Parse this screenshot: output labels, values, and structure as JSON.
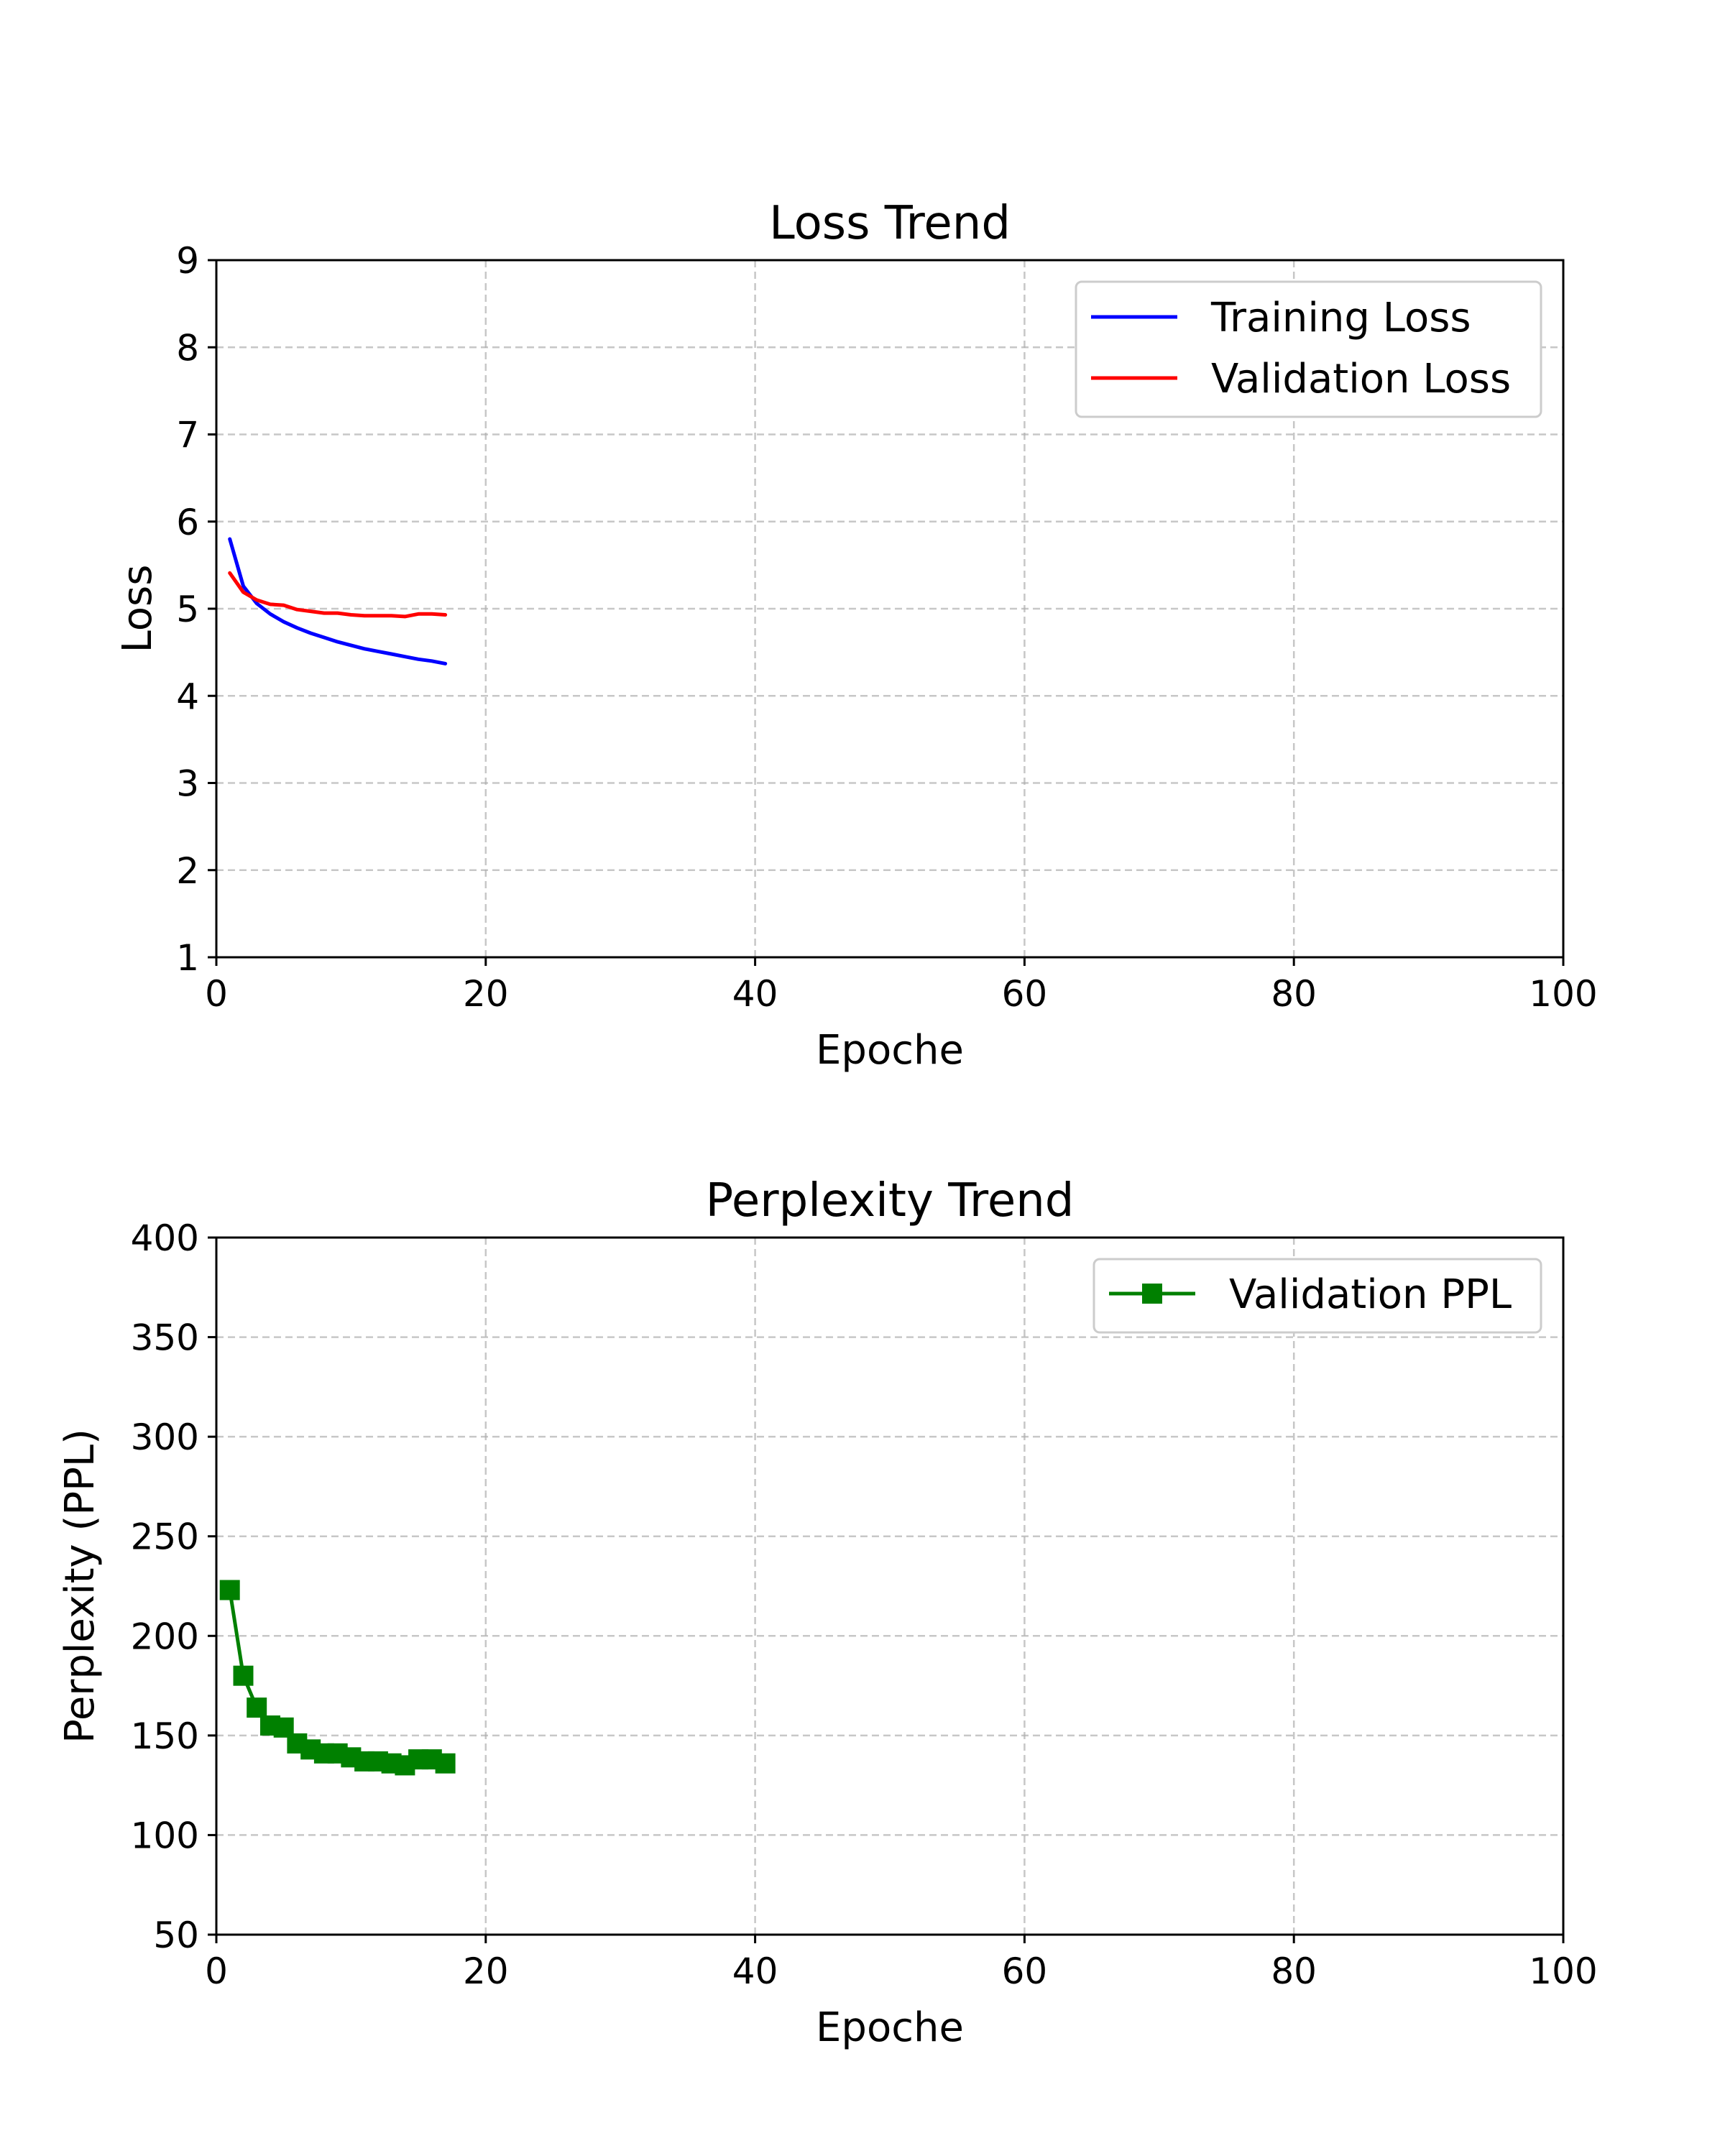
{
  "chart_data": [
    {
      "type": "line",
      "title": "Loss Trend",
      "xlabel": "Epoche",
      "ylabel": "Loss",
      "xlim": [
        0,
        100
      ],
      "ylim": [
        1,
        9
      ],
      "xticks": [
        "0",
        "20",
        "40",
        "60",
        "80",
        "100"
      ],
      "yticks": [
        "1",
        "2",
        "3",
        "4",
        "5",
        "6",
        "7",
        "8",
        "9"
      ],
      "xtick_values": [
        0,
        20,
        40,
        60,
        80,
        100
      ],
      "ytick_values": [
        1,
        2,
        3,
        4,
        5,
        6,
        7,
        8,
        9
      ],
      "grid": true,
      "legend_position": "top-right",
      "x": [
        1,
        2,
        3,
        4,
        5,
        6,
        7,
        8,
        9,
        10,
        11,
        12,
        13,
        14,
        15,
        16,
        17
      ],
      "series": [
        {
          "name": "Training Loss",
          "color": "#0000ff",
          "marker": "none",
          "values": [
            5.8,
            5.26,
            5.06,
            4.94,
            4.85,
            4.78,
            4.72,
            4.67,
            4.62,
            4.58,
            4.54,
            4.51,
            4.48,
            4.45,
            4.42,
            4.4,
            4.37
          ]
        },
        {
          "name": "Validation Loss",
          "color": "#ff0000",
          "marker": "none",
          "values": [
            5.41,
            5.19,
            5.1,
            5.05,
            5.04,
            4.99,
            4.97,
            4.95,
            4.95,
            4.93,
            4.92,
            4.92,
            4.92,
            4.91,
            4.94,
            4.94,
            4.93
          ]
        }
      ]
    },
    {
      "type": "line",
      "title": "Perplexity Trend",
      "xlabel": "Epoche",
      "ylabel": "Perplexity (PPL)",
      "xlim": [
        0,
        100
      ],
      "ylim": [
        50,
        400
      ],
      "xticks": [
        "0",
        "20",
        "40",
        "60",
        "80",
        "100"
      ],
      "yticks": [
        "50",
        "100",
        "150",
        "200",
        "250",
        "300",
        "350",
        "400"
      ],
      "xtick_values": [
        0,
        20,
        40,
        60,
        80,
        100
      ],
      "ytick_values": [
        50,
        100,
        150,
        200,
        250,
        300,
        350,
        400
      ],
      "grid": true,
      "legend_position": "top-right",
      "x": [
        1,
        2,
        3,
        4,
        5,
        6,
        7,
        8,
        9,
        10,
        11,
        12,
        13,
        14,
        15,
        16,
        17
      ],
      "series": [
        {
          "name": "Validation PPL",
          "color": "#008000",
          "marker": "square",
          "values": [
            223,
            180,
            164,
            155,
            154,
            146,
            143,
            141,
            141,
            139,
            137,
            137,
            136,
            135,
            138,
            138,
            136
          ]
        }
      ]
    }
  ]
}
